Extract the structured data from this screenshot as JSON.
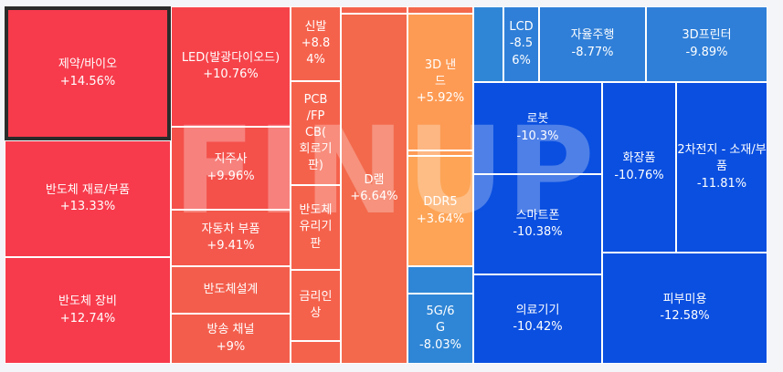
{
  "chart_data": {
    "type": "treemap",
    "tiles": [
      {
        "label": "제약/바이오",
        "value": "+14.56%",
        "color": "#f73b4c",
        "selected": true
      },
      {
        "label": "반도체 재료/부품",
        "value": "+13.33%",
        "color": "#f73b4c"
      },
      {
        "label": "반도체 장비",
        "value": "+12.74%",
        "color": "#f73b4c"
      },
      {
        "label": "LED(발광다이오드)",
        "value": "+10.76%",
        "color": "#f6434a"
      },
      {
        "label": "지주사",
        "value": "+9.96%",
        "color": "#f4514b"
      },
      {
        "label": "자동차 부품",
        "value": "+9.41%",
        "color": "#f4584c"
      },
      {
        "label": "반도체설계",
        "value": "",
        "color": "#f35e4c"
      },
      {
        "label": "방송 채널",
        "value": "+9%",
        "color": "#f35e4c"
      },
      {
        "label": "신발",
        "value": "+8.84%",
        "color": "#f5624c"
      },
      {
        "label": "PCB/FPCB(회로기판)",
        "value": "",
        "color": "#f5624c"
      },
      {
        "label": "반도체유리기판",
        "value": "",
        "color": "#f5624c"
      },
      {
        "label": "금리인상",
        "value": "",
        "color": "#f5624c"
      },
      {
        "label": "",
        "value": "",
        "color": "#f5624c"
      },
      {
        "label": "",
        "value": "",
        "color": "#f5624c"
      },
      {
        "label": "D램",
        "value": "+6.64%",
        "color": "#f3694c"
      },
      {
        "label": "",
        "value": "",
        "color": "#f3694c"
      },
      {
        "label": "3D 낸드",
        "value": "+5.92%",
        "color": "#fd9b54"
      },
      {
        "label": "",
        "value": "",
        "color": "#fd9b54"
      },
      {
        "label": "DDR5",
        "value": "+3.64%",
        "color": "#fda456"
      },
      {
        "label": "",
        "value": "",
        "color": "#2f86d6"
      },
      {
        "label": "5G/6G",
        "value": "-8.03%",
        "color": "#2f86d6"
      },
      {
        "label": "",
        "value": "",
        "color": "#2f86d6"
      },
      {
        "label": "LCD",
        "value": "-8.56%",
        "color": "#2f7fd8"
      },
      {
        "label": "자율주행",
        "value": "-8.77%",
        "color": "#2f7fd8"
      },
      {
        "label": "3D프린터",
        "value": "-9.89%",
        "color": "#2f7fd8"
      },
      {
        "label": "로봇",
        "value": "-10.3%",
        "color": "#0a4fe0"
      },
      {
        "label": "스마트폰",
        "value": "-10.38%",
        "color": "#0a4fe0"
      },
      {
        "label": "의료기기",
        "value": "-10.42%",
        "color": "#0a4fe0"
      },
      {
        "label": "화장품",
        "value": "-10.76%",
        "color": "#0a4fe0"
      },
      {
        "label": "2차전지 - 소재/부품",
        "value": "-11.81%",
        "color": "#0a4fe0"
      },
      {
        "label": "피부미용",
        "value": "-12.58%",
        "color": "#0a4fe0"
      }
    ]
  },
  "watermark": "FINUP"
}
